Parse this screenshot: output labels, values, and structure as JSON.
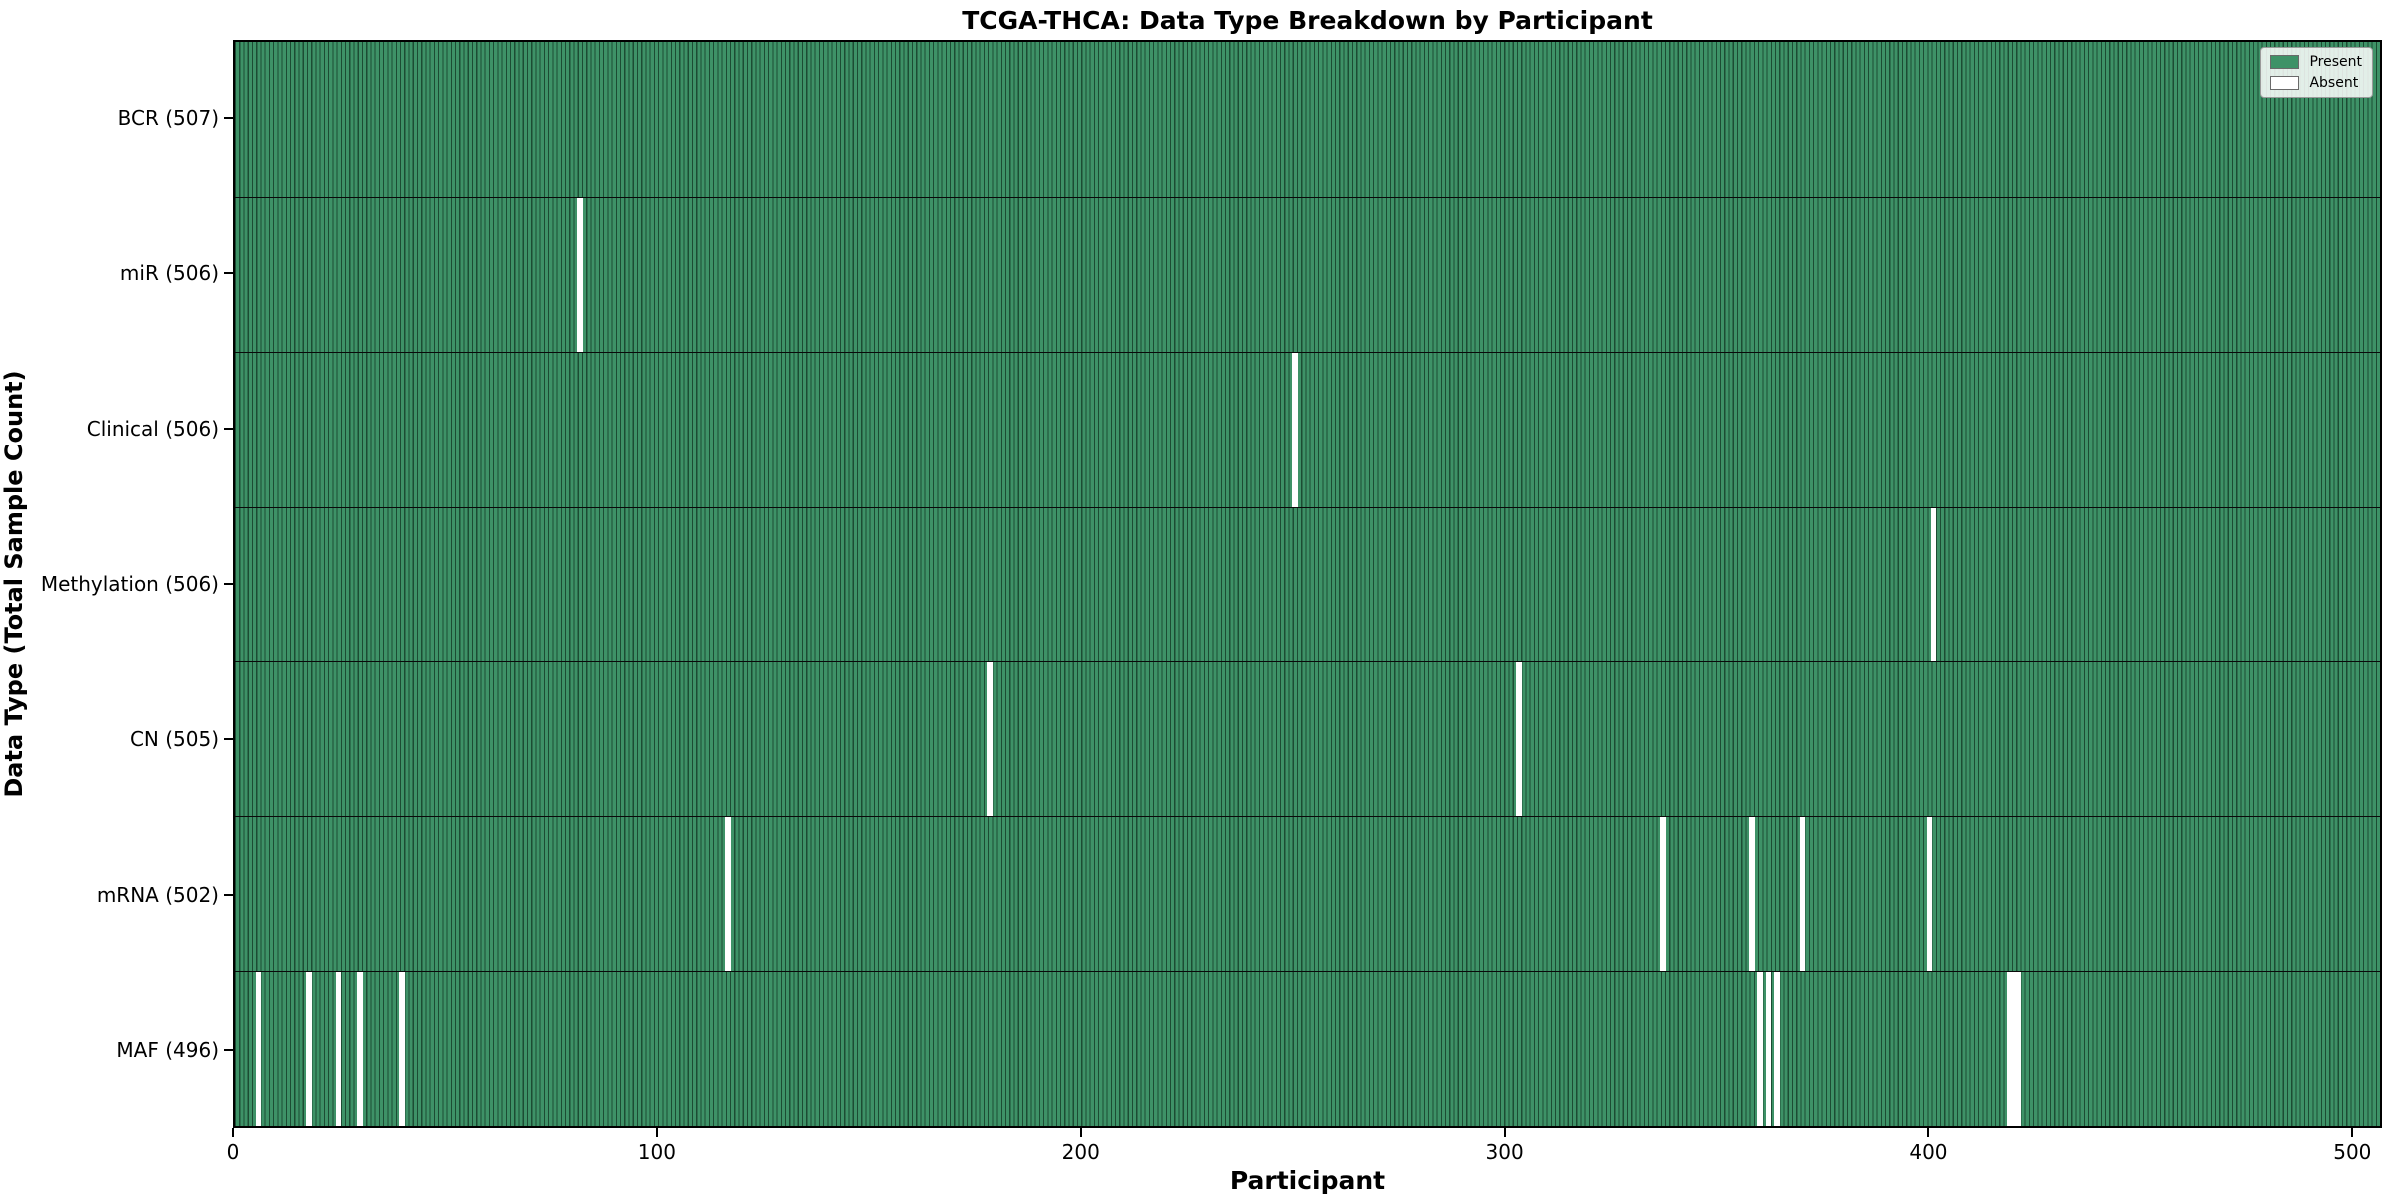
{
  "chart_data": {
    "type": "heatmap",
    "title": "TCGA-THCA: Data Type Breakdown by Participant",
    "xlabel": "Participant",
    "ylabel": "Data Type (Total Sample Count)",
    "x_ticks": [
      0,
      100,
      200,
      300,
      400,
      500
    ],
    "x_range": [
      0,
      507
    ],
    "total_participants": 507,
    "grid": false,
    "legend_position": "upper right",
    "legend": [
      {
        "label": "Present",
        "color": "#3e9267"
      },
      {
        "label": "Absent",
        "color": "#ffffff"
      }
    ],
    "rows": [
      {
        "data_type": "BCR",
        "label": "BCR (507)",
        "present_count": 507,
        "absent_participants": []
      },
      {
        "data_type": "miR",
        "label": "miR (506)",
        "present_count": 506,
        "absent_participants": [
          81
        ]
      },
      {
        "data_type": "Clinical",
        "label": "Clinical (506)",
        "present_count": 506,
        "absent_participants": [
          250
        ]
      },
      {
        "data_type": "Methylation",
        "label": "Methylation (506)",
        "present_count": 506,
        "absent_participants": [
          401
        ]
      },
      {
        "data_type": "CN",
        "label": "CN (505)",
        "present_count": 505,
        "absent_participants": [
          178,
          303
        ]
      },
      {
        "data_type": "mRNA",
        "label": "mRNA (502)",
        "present_count": 502,
        "absent_participants": [
          116,
          337,
          358,
          370,
          400
        ]
      },
      {
        "data_type": "MAF",
        "label": "MAF (496)",
        "present_count": 496,
        "absent_participants": [
          5,
          17,
          24,
          29,
          39,
          360,
          362,
          364,
          419,
          420,
          421
        ]
      }
    ],
    "colors": {
      "present_fill": "#3e9267",
      "present_edge": "#1c4c33",
      "absent_fill": "#ffffff",
      "axis": "#000000",
      "background": "#ffffff"
    }
  }
}
